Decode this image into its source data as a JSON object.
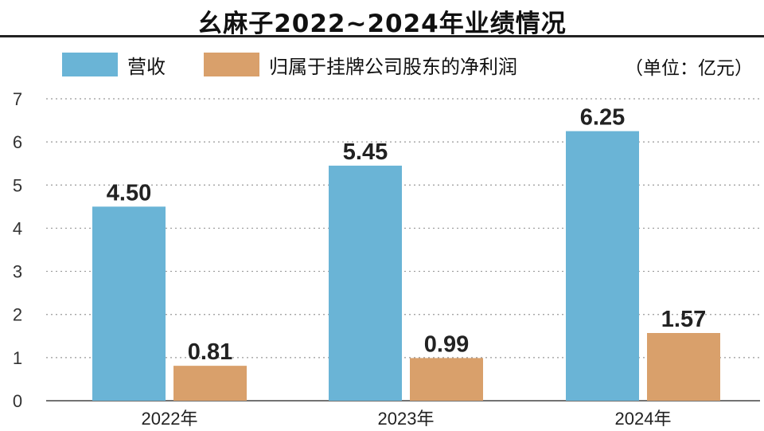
{
  "chart_data": {
    "type": "bar",
    "title": "幺麻子2022~2024年业绩情况",
    "unit": "（单位：亿元）",
    "categories": [
      "2022年",
      "2023年",
      "2024年"
    ],
    "series": [
      {
        "name": "营收",
        "color": "#6ab4d6",
        "values": [
          4.5,
          5.45,
          6.25
        ],
        "labels": [
          "4.50",
          "5.45",
          "6.25"
        ]
      },
      {
        "name": "归属于挂牌公司股东的净利润",
        "color": "#d9a06b",
        "values": [
          0.81,
          0.99,
          1.57
        ],
        "labels": [
          "0.81",
          "0.99",
          "1.57"
        ]
      }
    ],
    "ylim": [
      0,
      7
    ],
    "yticks": [
      "0",
      "1",
      "2",
      "3",
      "4",
      "5",
      "6",
      "7"
    ],
    "grid": true,
    "legend_position": "top-left"
  }
}
